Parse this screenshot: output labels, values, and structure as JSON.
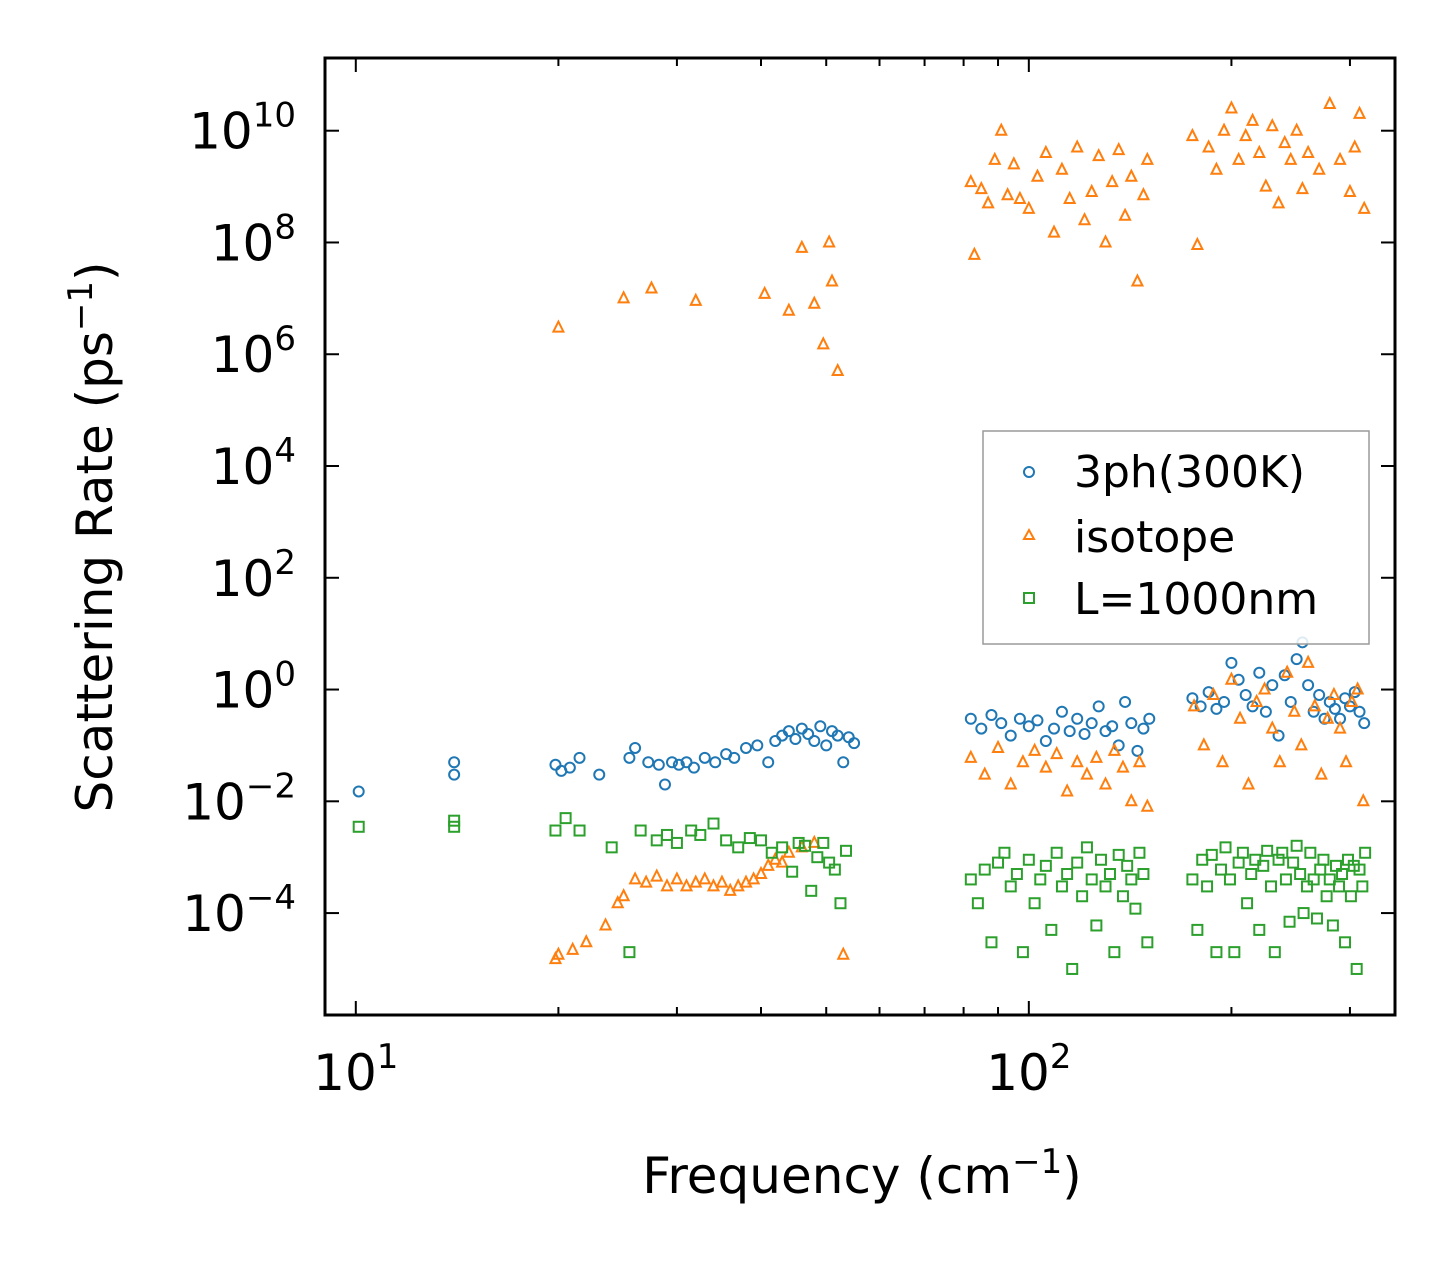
{
  "chart_data": {
    "type": "scatter",
    "title": "",
    "xlabel": "Frequency (cm",
    "xlabel_sup": "−1",
    "xlabel_end": ")",
    "ylabel": "Scattering Rate (ps",
    "ylabel_sup": "−1",
    "ylabel_end": ")",
    "xscale": "log",
    "yscale": "log",
    "xlim": [
      9,
      350
    ],
    "ylim": [
      1.5e-06,
      200000000000
    ],
    "legend_position": "center-right",
    "x_ticks": [
      {
        "base": "10",
        "exp": "1",
        "value": 10
      },
      {
        "base": "10",
        "exp": "2",
        "value": 100
      }
    ],
    "y_ticks": [
      {
        "base": "10",
        "exp": "−4",
        "value": 0.0001
      },
      {
        "base": "10",
        "exp": "−2",
        "value": 0.01
      },
      {
        "base": "10",
        "exp": "0",
        "value": 1
      },
      {
        "base": "10",
        "exp": "2",
        "value": 100
      },
      {
        "base": "10",
        "exp": "4",
        "value": 10000
      },
      {
        "base": "10",
        "exp": "6",
        "value": 1000000
      },
      {
        "base": "10",
        "exp": "8",
        "value": 100000000
      },
      {
        "base": "10",
        "exp": "10",
        "value": 10000000000
      }
    ],
    "series": [
      {
        "name": "3ph(300K)",
        "marker": "circle",
        "color": "#1f77b4",
        "x": [
          10.1,
          14.0,
          14.0,
          19.8,
          20.2,
          20.8,
          21.5,
          23.0,
          25.5,
          26.0,
          27.2,
          28.2,
          28.8,
          29.5,
          30.2,
          31.0,
          31.8,
          33.0,
          34.2,
          35.5,
          36.5,
          38.0,
          39.5,
          41.0,
          42.0,
          43.0,
          44.0,
          45.0,
          46.0,
          47.0,
          48.0,
          49.0,
          50.0,
          51.0,
          52.0,
          53.0,
          54.0,
          55.0,
          82,
          85,
          88,
          91,
          94,
          97,
          100,
          103,
          106,
          109,
          112,
          115,
          118,
          121,
          124,
          127,
          130,
          133,
          136,
          139,
          142,
          145,
          148,
          151,
          175,
          180,
          185,
          190,
          195,
          200,
          205,
          210,
          215,
          220,
          225,
          230,
          235,
          240,
          245,
          250,
          255,
          260,
          265,
          270,
          275,
          280,
          285,
          290,
          295,
          300,
          305,
          310,
          315
        ],
        "y": [
          0.015,
          0.05,
          0.03,
          0.045,
          0.035,
          0.04,
          0.06,
          0.03,
          0.06,
          0.09,
          0.05,
          0.045,
          0.02,
          0.05,
          0.045,
          0.05,
          0.04,
          0.06,
          0.05,
          0.07,
          0.06,
          0.09,
          0.1,
          0.05,
          0.12,
          0.15,
          0.18,
          0.13,
          0.2,
          0.16,
          0.12,
          0.22,
          0.1,
          0.18,
          0.15,
          0.05,
          0.14,
          0.11,
          0.3,
          0.2,
          0.35,
          0.25,
          0.15,
          0.3,
          0.22,
          0.28,
          0.12,
          0.2,
          0.4,
          0.18,
          0.3,
          0.16,
          0.25,
          0.5,
          0.18,
          0.22,
          0.1,
          0.6,
          0.25,
          0.08,
          0.2,
          0.3,
          0.7,
          0.5,
          0.9,
          0.45,
          0.6,
          3.0,
          1.5,
          0.8,
          0.5,
          2.0,
          0.4,
          1.2,
          0.15,
          1.8,
          0.6,
          3.5,
          7.0,
          1.2,
          0.4,
          0.8,
          0.3,
          0.6,
          0.45,
          0.3,
          0.7,
          0.5,
          0.9,
          0.4,
          0.25
        ]
      },
      {
        "name": "isotope",
        "marker": "triangle",
        "color": "#ff7f0e",
        "x": [
          20.0,
          25.0,
          27.5,
          32.0,
          40.5,
          44.0,
          46.0,
          48.0,
          49.5,
          50.5,
          51.0,
          52.0,
          19.8,
          20.0,
          21.0,
          22.0,
          23.5,
          24.5,
          25.0,
          26.0,
          27.0,
          28.0,
          29.0,
          30.0,
          31.0,
          32.0,
          33.0,
          34.0,
          35.0,
          36.0,
          37.0,
          38.0,
          39.0,
          40.0,
          41.0,
          42.0,
          43.0,
          44.0,
          46.0,
          48.0,
          53.0,
          82,
          83,
          85,
          87,
          89,
          91,
          93,
          95,
          97,
          100,
          103,
          106,
          109,
          112,
          115,
          118,
          121,
          124,
          127,
          130,
          133,
          136,
          139,
          142,
          145,
          148,
          150,
          175,
          178,
          185,
          190,
          195,
          200,
          205,
          210,
          215,
          220,
          225,
          230,
          235,
          240,
          245,
          250,
          255,
          260,
          270,
          280,
          290,
          300,
          305,
          310,
          315,
          82,
          86,
          90,
          94,
          98,
          102,
          106,
          110,
          114,
          118,
          122,
          126,
          130,
          134,
          138,
          142,
          146,
          150,
          176,
          182,
          188,
          194,
          200,
          206,
          212,
          218,
          224,
          230,
          236,
          242,
          248,
          254,
          260,
          266,
          272,
          278,
          284,
          290,
          296,
          302,
          308,
          314
        ],
        "y": [
          3000000,
          10000000,
          15000000,
          9000000,
          12000000,
          6000000,
          80000000,
          8000000,
          1500000,
          100000000,
          20000000,
          500000,
          1.5e-05,
          1.8e-05,
          2.2e-05,
          3e-05,
          6e-05,
          0.00015,
          0.0002,
          0.0004,
          0.00035,
          0.00045,
          0.0003,
          0.0004,
          0.0003,
          0.00035,
          0.0004,
          0.0003,
          0.00035,
          0.00025,
          0.0003,
          0.00035,
          0.0004,
          0.0005,
          0.0007,
          0.0009,
          0.0008,
          0.0012,
          0.0015,
          0.0018,
          1.8e-05,
          1200000000,
          60000000,
          900000000,
          500000000,
          3000000000,
          10000000000,
          700000000,
          2500000000,
          600000000,
          400000000,
          1500000000,
          4000000000,
          150000000,
          2000000000,
          600000000,
          5000000000,
          250000000,
          800000000,
          3500000000,
          100000000,
          1200000000,
          4500000000,
          300000000,
          1500000000,
          20000000,
          700000000,
          3000000000,
          8000000000,
          90000000,
          5000000000,
          2000000000,
          10000000000,
          25000000000,
          3000000000,
          8000000000,
          15000000000,
          4000000000,
          1000000000,
          12000000000,
          500000000,
          6000000000,
          3000000000,
          10000000000,
          900000000,
          4000000000,
          2000000000,
          30000000000,
          3000000000,
          800000000,
          5000000000,
          20000000000,
          400000000,
          0.06,
          0.03,
          0.09,
          0.02,
          0.05,
          0.08,
          0.04,
          0.07,
          0.015,
          0.05,
          0.03,
          0.06,
          0.02,
          0.08,
          0.04,
          0.01,
          0.05,
          0.008,
          0.5,
          0.1,
          0.8,
          0.05,
          1.5,
          0.3,
          0.02,
          0.6,
          1.0,
          0.2,
          0.05,
          2.0,
          0.4,
          0.1,
          3.0,
          0.5,
          0.03,
          0.3,
          0.8,
          0.2,
          0.05,
          0.6,
          1.0,
          0.01
        ]
      },
      {
        "name": "L=1000nm",
        "marker": "square",
        "color": "#2ca02c",
        "x": [
          10.1,
          14.0,
          14.0,
          19.8,
          20.5,
          21.5,
          24.0,
          25.5,
          26.5,
          28.0,
          29.0,
          30.0,
          31.5,
          32.5,
          34.0,
          35.5,
          37.0,
          38.5,
          40.0,
          41.5,
          43.0,
          44.5,
          45.5,
          46.5,
          47.5,
          48.5,
          49.5,
          50.5,
          51.5,
          52.5,
          53.5,
          82,
          84,
          86,
          88,
          90,
          92,
          94,
          96,
          98,
          100,
          102,
          104,
          106,
          108,
          110,
          112,
          114,
          116,
          118,
          120,
          122,
          124,
          126,
          128,
          130,
          132,
          134,
          136,
          138,
          140,
          142,
          144,
          146,
          148,
          150,
          175,
          178,
          181,
          184,
          187,
          190,
          193,
          196,
          199,
          202,
          205,
          208,
          211,
          214,
          217,
          220,
          223,
          226,
          229,
          232,
          235,
          238,
          241,
          244,
          247,
          250,
          253,
          256,
          259,
          262,
          265,
          268,
          271,
          274,
          277,
          280,
          283,
          286,
          289,
          292,
          295,
          298,
          301,
          304,
          307,
          310,
          313,
          316
        ],
        "y": [
          0.0035,
          0.0035,
          0.0045,
          0.003,
          0.005,
          0.003,
          0.0015,
          2e-05,
          0.003,
          0.002,
          0.0025,
          0.0018,
          0.003,
          0.0025,
          0.004,
          0.002,
          0.0015,
          0.0022,
          0.002,
          0.0012,
          0.0015,
          0.00055,
          0.0018,
          0.0016,
          0.00025,
          0.001,
          0.0018,
          0.0008,
          0.0006,
          0.00015,
          0.0013,
          0.0004,
          0.00015,
          0.0006,
          3e-05,
          0.0008,
          0.0012,
          0.0003,
          0.0005,
          2e-05,
          0.0009,
          0.00015,
          0.0004,
          0.0007,
          5e-05,
          0.0012,
          0.0003,
          0.0005,
          1e-05,
          0.0008,
          0.0002,
          0.0015,
          0.0004,
          6e-05,
          0.0009,
          0.0003,
          0.0005,
          2e-05,
          0.0011,
          0.0002,
          0.0007,
          0.0004,
          0.00012,
          0.0012,
          0.0005,
          3e-05,
          0.0004,
          5e-05,
          0.0009,
          0.0003,
          0.0011,
          2e-05,
          0.0006,
          0.0015,
          0.0004,
          2e-05,
          0.0008,
          0.0012,
          0.00015,
          0.0005,
          0.0009,
          5e-05,
          0.0007,
          0.0013,
          0.0003,
          2e-05,
          0.0009,
          0.0012,
          0.0004,
          7e-05,
          0.0008,
          0.0016,
          0.0005,
          0.0001,
          0.0003,
          0.0012,
          0.0004,
          8e-05,
          0.0006,
          0.0009,
          0.0002,
          0.0004,
          6e-05,
          0.0007,
          0.0003,
          0.0005,
          3e-05,
          0.0009,
          0.0002,
          0.0007,
          1e-05,
          0.0006,
          0.0003,
          0.0012
        ]
      }
    ]
  }
}
